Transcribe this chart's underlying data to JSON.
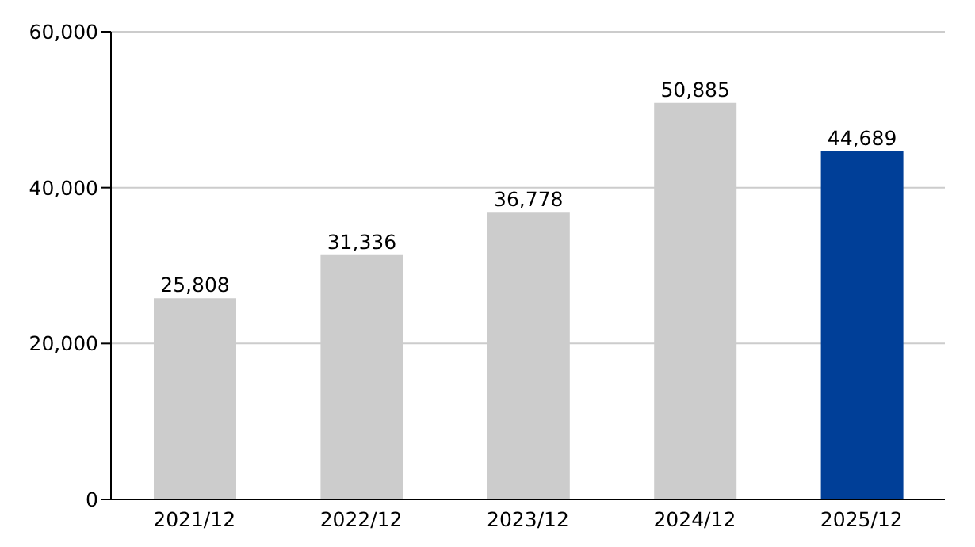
{
  "chart_data": {
    "type": "bar",
    "categories": [
      "2021/12",
      "2022/12",
      "2023/12",
      "2024/12",
      "2025/12"
    ],
    "values": [
      25808,
      31336,
      36778,
      50885,
      44689
    ],
    "colors": [
      "#cccccc",
      "#cccccc",
      "#cccccc",
      "#cccccc",
      "#003f98"
    ],
    "ylim": [
      0,
      60000
    ],
    "yticks": [
      {
        "value": 0,
        "label": "0"
      },
      {
        "value": 20000,
        "label": "20,000"
      },
      {
        "value": 40000,
        "label": "40,000"
      },
      {
        "value": 60000,
        "label": "60,000"
      }
    ],
    "value_labels": [
      "25,808",
      "31,336",
      "36,778",
      "50,885",
      "44,689"
    ],
    "grid": "y"
  }
}
